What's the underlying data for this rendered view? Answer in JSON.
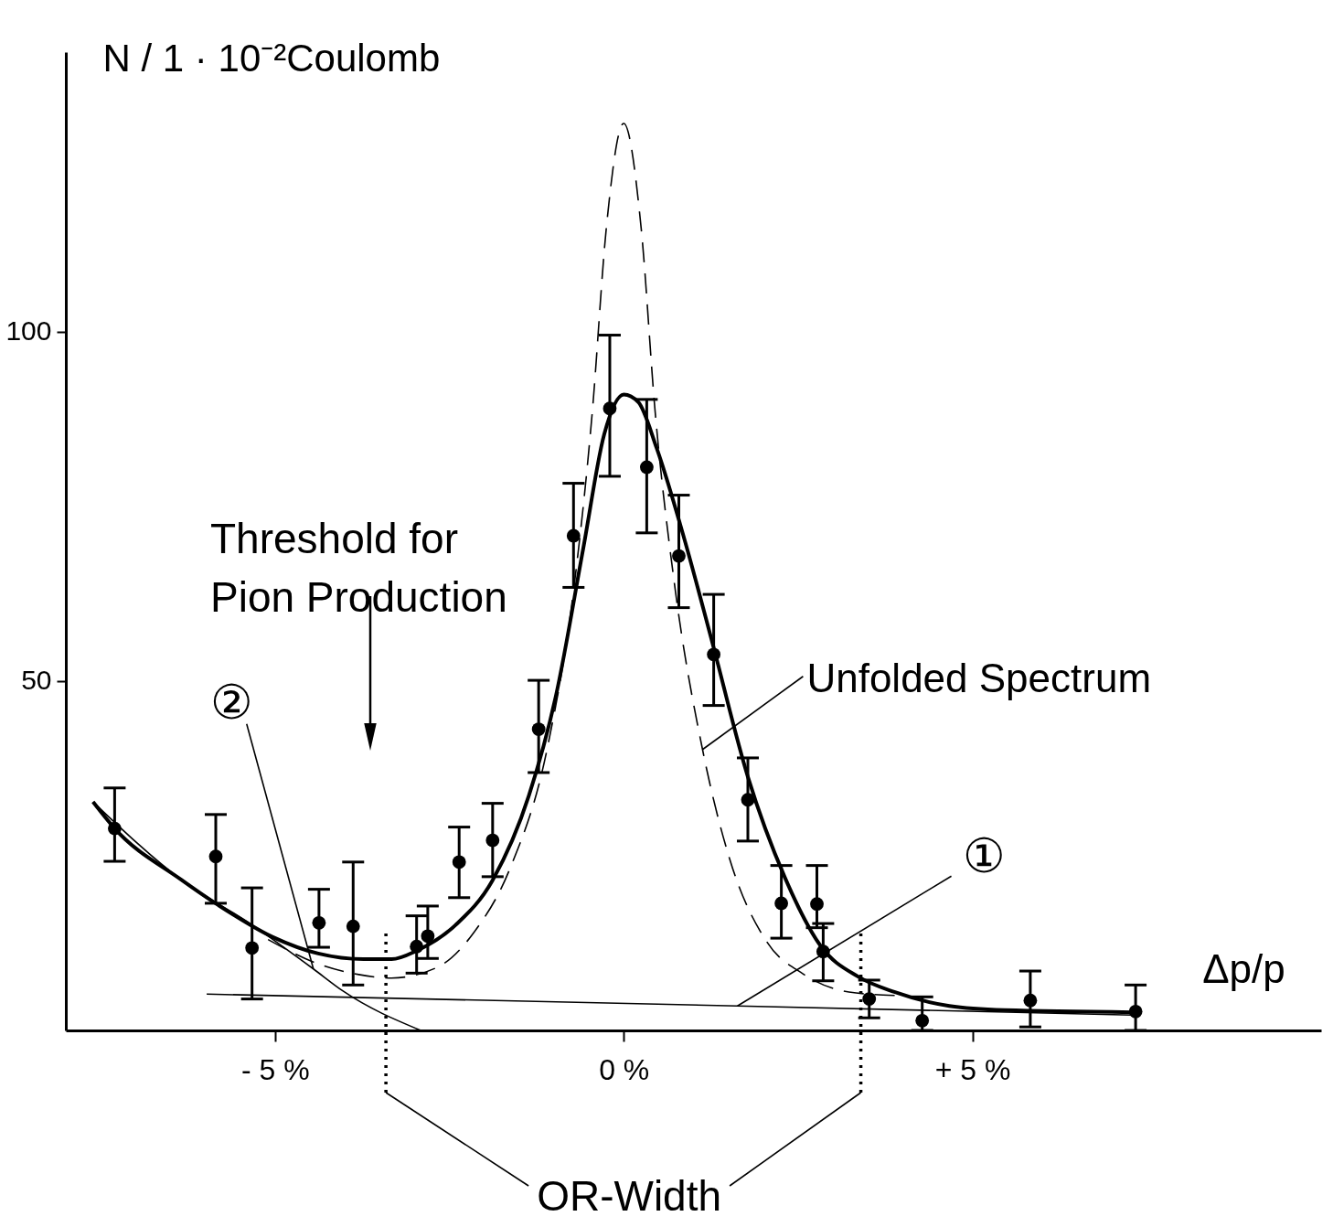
{
  "chart_data": {
    "type": "scatter",
    "ylabel": "N / 1 · 10⁻²Coulomb",
    "xlabel": "Δp/p",
    "xlim": [
      -8,
      10
    ],
    "ylim": [
      0,
      140
    ],
    "xticks": [
      {
        "value": -5,
        "label": "- 5 %"
      },
      {
        "value": 0,
        "label": "0 %"
      },
      {
        "value": 5,
        "label": "+ 5 %"
      }
    ],
    "yticks": [
      50,
      100
    ],
    "grid": false,
    "series": [
      {
        "marker": "circle",
        "color": "#000000",
        "x": [
          -7.3,
          -5.85,
          -5.33,
          -4.37,
          -3.88,
          -2.97,
          -2.81,
          -2.36,
          -1.88,
          -1.22,
          -0.72,
          -0.2,
          0.33,
          0.79,
          1.29,
          1.78,
          2.26,
          2.77,
          2.86,
          3.52,
          4.28,
          5.83,
          7.34
        ],
        "values": [
          28.9,
          24.9,
          11.8,
          15.4,
          14.9,
          12.0,
          13.5,
          24.1,
          27.2,
          43.1,
          70.8,
          89.0,
          80.6,
          67.9,
          53.8,
          33.0,
          18.2,
          18.1,
          11.3,
          4.5,
          1.4,
          4.3,
          2.7
        ],
        "errors": [
          [
            24.2,
            34.7
          ],
          [
            18.2,
            30.9
          ],
          [
            4.5,
            20.4
          ],
          [
            11.9,
            20.2
          ],
          [
            6.5,
            24.1
          ],
          [
            8.2,
            16.4
          ],
          [
            10.3,
            17.8
          ],
          [
            19.0,
            29.1
          ],
          [
            22.0,
            32.5
          ],
          [
            36.9,
            50.1
          ],
          [
            63.4,
            78.3
          ],
          [
            79.3,
            99.5
          ],
          [
            71.2,
            90.3
          ],
          [
            60.5,
            76.6
          ],
          [
            46.5,
            62.4
          ],
          [
            27.1,
            39.0
          ],
          [
            13.2,
            23.6
          ],
          [
            14.7,
            23.6
          ],
          [
            7.1,
            15.3
          ],
          [
            1.8,
            7.2
          ],
          [
            0,
            4.8
          ],
          [
            0.5,
            8.5
          ],
          [
            0,
            6.5
          ]
        ]
      },
      {
        "type": "line",
        "marker": "none",
        "color": "#000000",
        "line_style": "solid",
        "x": [
          -7.61,
          -7.3,
          -6.35,
          -5.81,
          -5.04,
          -4.38,
          -3.73,
          -3.33,
          -2.97,
          -2.41,
          -1.88,
          -1.36,
          -0.97,
          -0.58,
          -0.28,
          0,
          0.21,
          0.47,
          0.87,
          1.26,
          1.78,
          2.31,
          2.83,
          3.36,
          3.88,
          4.67,
          5.46,
          7.3
        ],
        "values": [
          32.7,
          28.9,
          21.6,
          17.9,
          13.4,
          11.0,
          10.2,
          10.2,
          11.4,
          15.1,
          21.5,
          33.6,
          48.0,
          69.0,
          85.3,
          91.0,
          89.9,
          83.4,
          70.3,
          55.9,
          36.3,
          21.9,
          12.0,
          7.7,
          5.5,
          3.5,
          2.9,
          2.6
        ]
      },
      {
        "type": "line",
        "marker": "none",
        "name": "Unfolded Spectrum",
        "color": "#000000",
        "line_style": "dashed",
        "x": [
          -5.1,
          -4.4,
          -3.8,
          -3.33,
          -2.68,
          -2.15,
          -1.63,
          -1.1,
          -0.71,
          -0.45,
          -0.25,
          0,
          0.25,
          0.45,
          0.73,
          1.13,
          1.52,
          2.05,
          2.57,
          3.23,
          3.9
        ],
        "values": [
          13.0,
          9.6,
          8.0,
          7.5,
          9.0,
          14.0,
          23.2,
          40.2,
          63.7,
          88.6,
          114.8,
          129.8,
          114.8,
          88.6,
          63.7,
          40.2,
          24.5,
          12.7,
          8.1,
          5.5,
          5.0
        ]
      },
      {
        "type": "line",
        "marker": "none",
        "name": "①",
        "color": "#000000",
        "line_style": "solid",
        "x": [
          -5.98,
          1.63,
          7.3
        ],
        "values": [
          5.2,
          3.5,
          2.2
        ]
      },
      {
        "type": "line",
        "marker": "none",
        "name": "②",
        "color": "#000000",
        "line_style": "solid",
        "x": [
          -7.61,
          -6.35,
          -5.33,
          -4.45,
          -4.02,
          -2.91
        ],
        "values": [
          32.7,
          21.6,
          15.1,
          8.8,
          5.6,
          0
        ]
      }
    ],
    "ref_lines": [
      {
        "axis": "x",
        "value": -3.41,
        "label": "OR-Width",
        "line_style": "dotted"
      },
      {
        "axis": "x",
        "value": 3.4,
        "line_style": "dotted"
      }
    ],
    "annotations": [
      "Threshold for\nPion Production"
    ]
  }
}
